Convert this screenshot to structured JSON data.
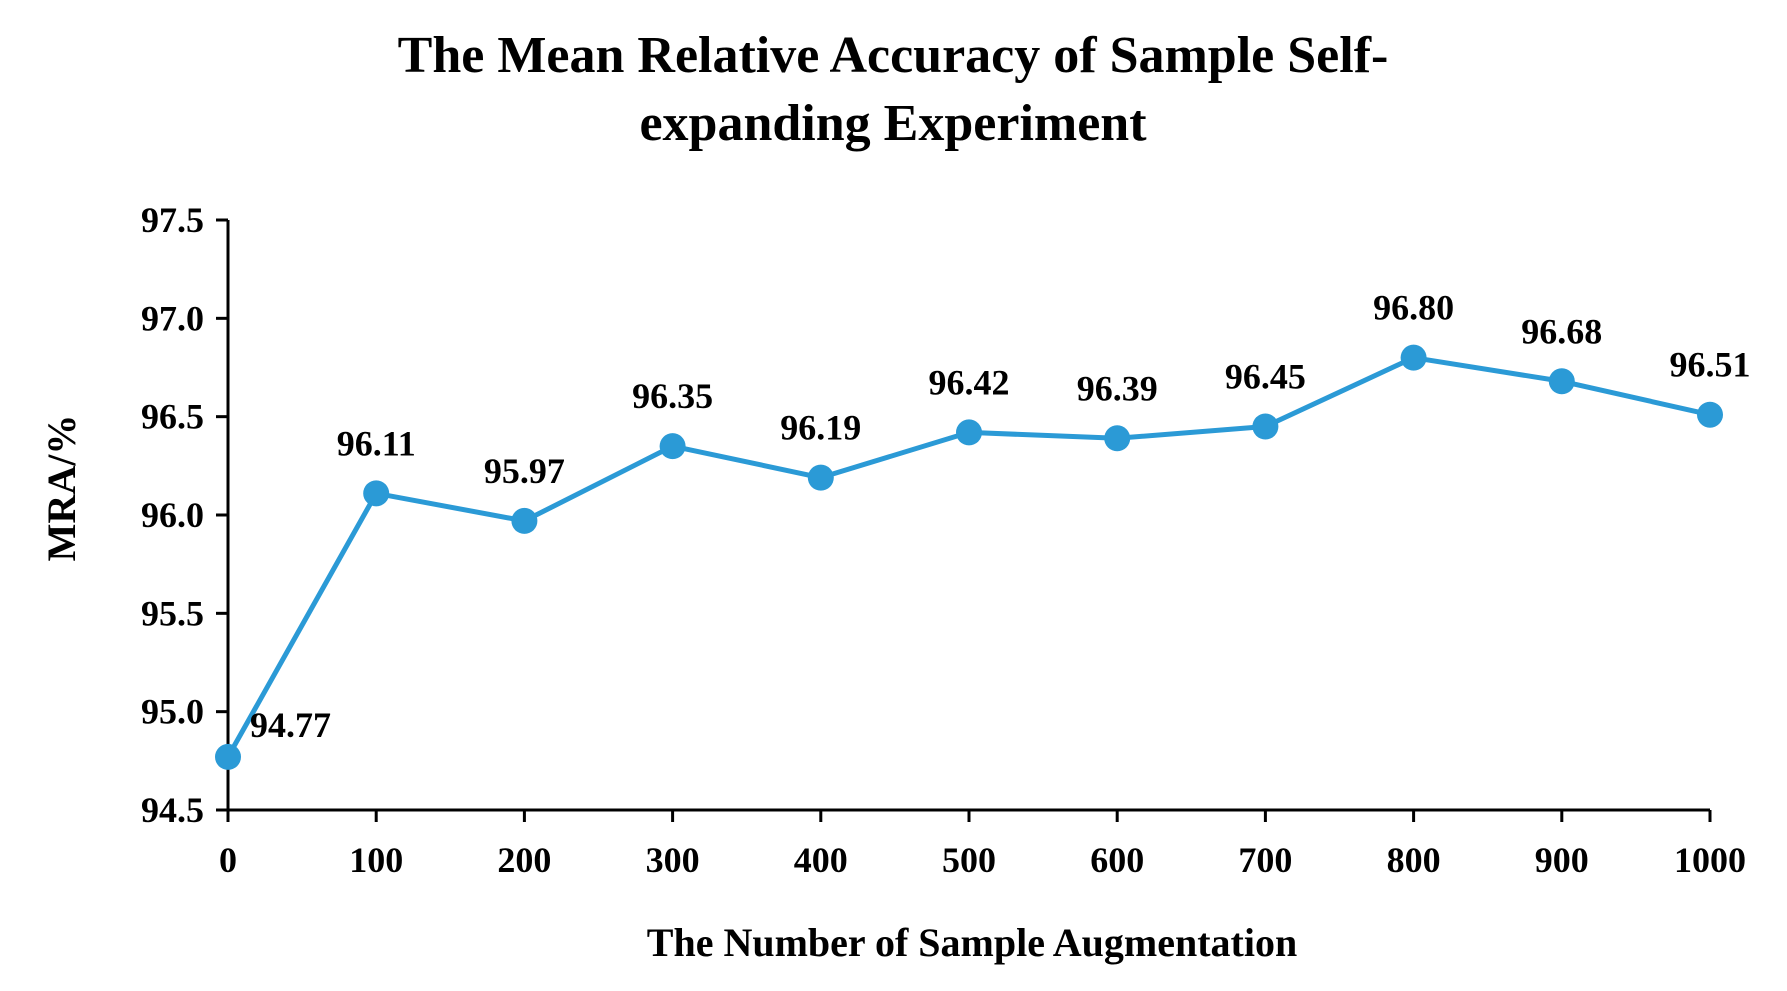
{
  "chart_data": {
    "type": "line",
    "title_lines": [
      "The Mean Relative Accuracy of Sample Self-",
      "expanding Experiment"
    ],
    "xlabel": "The Number of Sample Augmentation",
    "ylabel": "MRA/%",
    "x": [
      0,
      100,
      200,
      300,
      400,
      500,
      600,
      700,
      800,
      900,
      1000
    ],
    "x_tick_labels": [
      "0",
      "100",
      "200",
      "300",
      "400",
      "500",
      "600",
      "700",
      "800",
      "900",
      "1000"
    ],
    "series": [
      {
        "name": "MRA",
        "values": [
          94.77,
          96.11,
          95.97,
          96.35,
          96.19,
          96.42,
          96.39,
          96.45,
          96.8,
          96.68,
          96.51
        ],
        "labels": [
          "94.77",
          "96.11",
          "95.97",
          "96.35",
          "96.19",
          "96.42",
          "96.39",
          "96.45",
          "96.80",
          "96.68",
          "96.51"
        ],
        "color": "#2b9ad6"
      }
    ],
    "ylim": [
      94.5,
      97.5
    ],
    "y_ticks": [
      94.5,
      95.0,
      95.5,
      96.0,
      96.5,
      97.0,
      97.5
    ],
    "y_tick_labels": [
      "94.5",
      "95.0",
      "95.5",
      "96.0",
      "96.5",
      "97.0",
      "97.5"
    ],
    "grid": false,
    "legend": "none"
  }
}
